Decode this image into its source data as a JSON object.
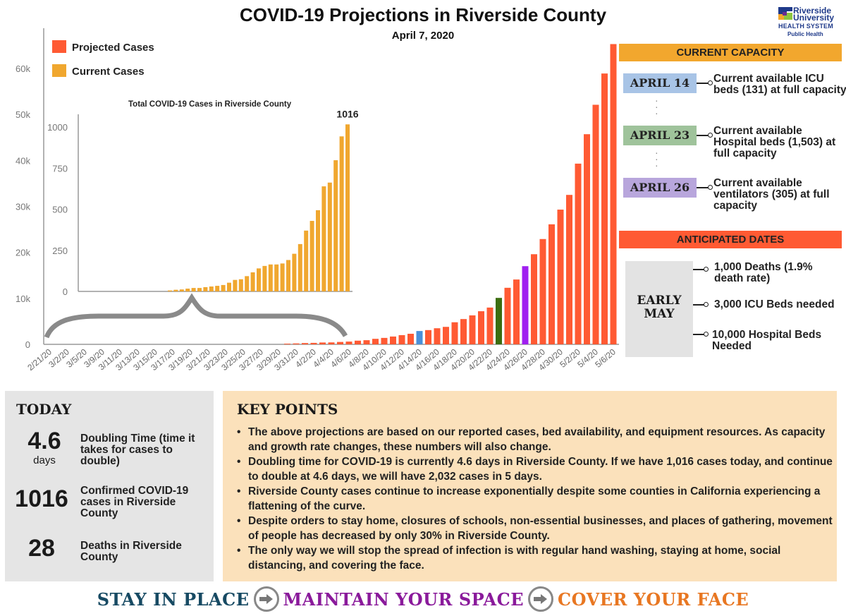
{
  "header": {
    "title": "COVID-19 Projections in Riverside County",
    "date": "April 7, 2020",
    "logo": {
      "line1": "Riverside",
      "line2": "University",
      "line3": "HEALTH SYSTEM",
      "line4": "Public Health"
    }
  },
  "colors": {
    "projected": "#ff5a33",
    "current": "#f0a72f",
    "april14": "#4a90d9",
    "april23": "#3c6e10",
    "april26": "#a020f0",
    "capacity_header": "#f2a72e",
    "anticipated_header": "#ff5a33",
    "april14_box": "#a8c4e6",
    "april23_box": "#9fc39b",
    "april26_box": "#b8a6dc",
    "keypoints_bg": "#fbe1bb",
    "today_bg": "#e5e5e5",
    "slogan1": "#174a63",
    "slogan2": "#8a1a9b",
    "slogan3": "#e87722"
  },
  "chart_data": [
    {
      "type": "bar",
      "title": "",
      "xlabel": "",
      "ylabel": "",
      "ylim": [
        0,
        60000
      ],
      "yticks": [
        "0",
        "10k",
        "20k",
        "30k",
        "40k",
        "50k",
        "60k"
      ],
      "grid": false,
      "legend": {
        "placement": "top-left",
        "entries": [
          "Projected Cases",
          "Current Cases"
        ]
      },
      "x_tick_labels": [
        "2/21/20",
        "3/2/20",
        "3/5/20",
        "3/9/20",
        "3/11/20",
        "3/13/20",
        "3/15/20",
        "3/17/20",
        "3/19/20",
        "3/21/20",
        "3/23/20",
        "3/25/20",
        "3/27/20",
        "3/29/20",
        "3/31/20",
        "4/2/20",
        "4/4/20",
        "4/6/20",
        "4/8/20",
        "4/10/20",
        "4/12/20",
        "4/14/20",
        "4/16/20",
        "4/18/20",
        "4/20/20",
        "4/22/20",
        "4/24/20",
        "4/26/20",
        "4/28/20",
        "4/30/20",
        "5/2/20",
        "5/4/20",
        "5/6/20"
      ],
      "series": [
        {
          "name": "Projected Cases",
          "x": [
            "3/30/20",
            "3/31/20",
            "4/1/20",
            "4/2/20",
            "4/3/20",
            "4/4/20",
            "4/5/20",
            "4/6/20",
            "4/7/20",
            "4/8/20",
            "4/9/20",
            "4/10/20",
            "4/11/20",
            "4/12/20",
            "4/13/20",
            "4/14/20",
            "4/15/20",
            "4/16/20",
            "4/17/20",
            "4/18/20",
            "4/19/20",
            "4/20/20",
            "4/21/20",
            "4/22/20",
            "4/23/20",
            "4/24/20",
            "4/25/20",
            "4/26/20",
            "4/27/20",
            "4/28/20",
            "4/29/20",
            "4/30/20",
            "5/1/20",
            "5/2/20",
            "5/3/20",
            "5/4/20",
            "5/5/20",
            "5/6/20"
          ],
          "values": [
            150,
            200,
            280,
            320,
            400,
            420,
            520,
            600,
            800,
            900,
            1200,
            1400,
            1700,
            2000,
            2300,
            2900,
            3100,
            3500,
            3800,
            4800,
            5500,
            6300,
            7200,
            8000,
            10100,
            12300,
            14100,
            17000,
            19600,
            22900,
            26100,
            29300,
            32500,
            39300,
            45700,
            52100,
            58900,
            65300
          ],
          "highlights": [
            {
              "x": "4/14/20",
              "label": "April 14",
              "color_key": "april14"
            },
            {
              "x": "4/23/20",
              "label": "April 23",
              "color_key": "april23"
            },
            {
              "x": "4/26/20",
              "label": "April 26",
              "color_key": "april26"
            }
          ]
        }
      ]
    },
    {
      "type": "bar",
      "title": "Total COVID-19 Cases in Riverside County",
      "xlabel": "",
      "ylabel": "",
      "ylim": [
        0,
        1000
      ],
      "yticks": [
        "0",
        "250",
        "500",
        "750",
        "1000"
      ],
      "grid": false,
      "annotation": "1016",
      "series": [
        {
          "name": "Current Cases",
          "x": [
            "3/8/20",
            "3/9/20",
            "3/10/20",
            "3/11/20",
            "3/12/20",
            "3/13/20",
            "3/14/20",
            "3/15/20",
            "3/16/20",
            "3/17/20",
            "3/18/20",
            "3/19/20",
            "3/20/20",
            "3/21/20",
            "3/22/20",
            "3/23/20",
            "3/24/20",
            "3/25/20",
            "3/26/20",
            "3/27/20",
            "3/28/20",
            "3/29/20",
            "3/30/20",
            "3/31/20",
            "4/1/20",
            "4/2/20",
            "4/3/20",
            "4/4/20",
            "4/5/20",
            "4/6/20",
            "4/7/20"
          ],
          "values": [
            6,
            10,
            12,
            17,
            21,
            21,
            26,
            30,
            34,
            39,
            53,
            70,
            74,
            93,
            116,
            140,
            155,
            164,
            164,
            170,
            191,
            229,
            288,
            370,
            429,
            494,
            639,
            662,
            798,
            943,
            1016
          ]
        }
      ]
    }
  ],
  "current_capacity": {
    "header": "CURRENT CAPACITY",
    "items": [
      {
        "date": "APRIL 14",
        "text": "Current available ICU beds (131) at full capacity"
      },
      {
        "date": "APRIL 23",
        "text": "Current available Hospital beds (1,503) at full capacity"
      },
      {
        "date": "APRIL 26",
        "text": "Current available ventilators (305) at full capacity"
      }
    ]
  },
  "anticipated_dates": {
    "header": "ANTICIPATED DATES",
    "date": "EARLY MAY",
    "items": [
      "1,000 Deaths (1.9% death rate)",
      "3,000 ICU Beds needed",
      "10,000 Hospital Beds Needed"
    ]
  },
  "today": {
    "title": "TODAY",
    "stats": [
      {
        "value": "4.6",
        "unit": "days",
        "label": "Doubling Time (time it takes for cases to double)"
      },
      {
        "value": "1016",
        "unit": "",
        "label": "Confirmed COVID-19 cases in Riverside County"
      },
      {
        "value": "28",
        "unit": "",
        "label": "Deaths in Riverside County"
      }
    ]
  },
  "key_points": {
    "title": "KEY POINTS",
    "items": [
      "The above projections are based on our reported cases, bed availability, and equipment resources. As capacity and growth rate changes, these numbers will also change.",
      "Doubling time for COVID-19 is currently 4.6 days in Riverside County. If we have 1,016 cases today, and continue to double at 4.6 days, we will have 2,032 cases in 5 days.",
      "Riverside County cases continue to increase exponentially despite some counties in California experiencing a flattening of the curve.",
      "Despite orders to stay home, closures of schools, non-essential businesses, and places of gathering, movement of people has decreased by only 30% in Riverside County.",
      "The only way we will stop the spread of infection is with regular hand washing, staying at home, social distancing, and covering the face."
    ]
  },
  "footer": {
    "slogans": [
      "STAY IN PLACE",
      "MAINTAIN YOUR SPACE",
      "COVER YOUR FACE"
    ]
  }
}
